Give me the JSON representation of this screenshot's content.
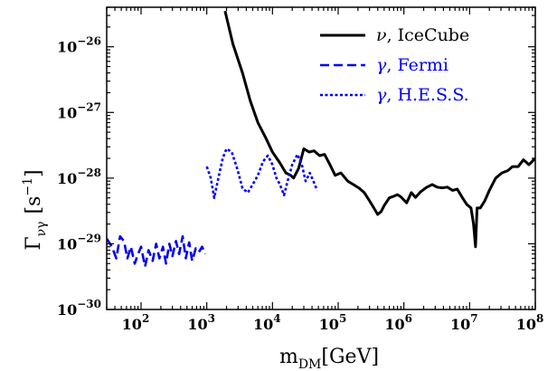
{
  "chart_data": {
    "type": "line",
    "xlabel": "m",
    "xlabel_sub": "DM",
    "xlabel_unit": "[GeV]",
    "ylabel": "Γ",
    "ylabel_sub": "νγ",
    "ylabel_unit": "[s",
    "ylabel_unit_sup": "−1",
    "ylabel_unit_close": "]",
    "x_scale": "log",
    "y_scale": "log",
    "xlim": [
      30,
      100000000
    ],
    "ylim": [
      1e-30,
      4e-26
    ],
    "x_ticks": [
      {
        "value": 100,
        "base": "10",
        "exp": "2"
      },
      {
        "value": 1000,
        "base": "10",
        "exp": "3"
      },
      {
        "value": 10000,
        "base": "10",
        "exp": "4"
      },
      {
        "value": 100000,
        "base": "10",
        "exp": "5"
      },
      {
        "value": 1000000,
        "base": "10",
        "exp": "6"
      },
      {
        "value": 10000000,
        "base": "10",
        "exp": "7"
      },
      {
        "value": 100000000,
        "base": "10",
        "exp": "8"
      }
    ],
    "y_ticks": [
      {
        "value": 1e-30,
        "base": "10",
        "exp": "−30"
      },
      {
        "value": 1e-29,
        "base": "10",
        "exp": "−29"
      },
      {
        "value": 1e-28,
        "base": "10",
        "exp": "−28"
      },
      {
        "value": 1e-27,
        "base": "10",
        "exp": "−27"
      },
      {
        "value": 1e-26,
        "base": "10",
        "exp": "−26"
      }
    ],
    "legend_position": "top-right",
    "series": [
      {
        "name_symbol": "ν",
        "name_rest": ", IceCube",
        "color": "#000000",
        "style": "solid",
        "x": [
          1900,
          2500,
          3500,
          4600,
          6000,
          8000,
          10000,
          13000,
          16000,
          19000,
          21000,
          25000,
          30000,
          36000,
          43000,
          52000,
          62000,
          75000,
          90000,
          110000,
          140000,
          170000,
          210000,
          250000,
          300000,
          350000,
          400000,
          450000,
          500000,
          600000,
          700000,
          800000,
          900000,
          1100000,
          1300000,
          1500000,
          1800000,
          2200000,
          2700000,
          3200000,
          3800000,
          4600000,
          5500000,
          6500000,
          7800000,
          9000000,
          10500000,
          11500000,
          12300000,
          13000000,
          14500000,
          17000000,
          20000000,
          25000000,
          31000000,
          38000000,
          45000000,
          55000000,
          66000000,
          80000000,
          95000000,
          100000000
        ],
        "y": [
          3.5e-26,
          1.1e-26,
          4e-27,
          1.5e-27,
          7e-28,
          4e-28,
          2.5e-28,
          1.7e-28,
          1.2e-28,
          1.1e-28,
          1e-28,
          1.4e-28,
          2.8e-28,
          2.5e-28,
          2.6e-28,
          2.2e-28,
          2.3e-28,
          1.6e-28,
          1.1e-28,
          1.2e-28,
          9e-29,
          8e-29,
          7e-29,
          6e-29,
          4.5e-29,
          3.5e-29,
          2.8e-29,
          3.1e-29,
          3.8e-29,
          5e-29,
          5.3e-29,
          5.6e-29,
          5.2e-29,
          4.2e-29,
          6e-29,
          5.1e-29,
          6.2e-29,
          7.2e-29,
          8e-29,
          7.3e-29,
          7.1e-29,
          7.3e-29,
          6.5e-29,
          6.8e-29,
          5e-29,
          4e-29,
          3.5e-29,
          2e-29,
          9e-30,
          3.5e-29,
          3.5e-29,
          4.5e-29,
          6.5e-29,
          1e-28,
          1.2e-28,
          1.3e-28,
          1.5e-28,
          1.5e-28,
          1.9e-28,
          1.6e-28,
          1.9e-28,
          2e-28
        ]
      },
      {
        "name_symbol": "γ",
        "name_rest": ", Fermi",
        "color": "#0000ee",
        "style": "dashed",
        "x": [
          30,
          36,
          42,
          48,
          55,
          62,
          70,
          80,
          90,
          100,
          115,
          130,
          150,
          170,
          190,
          215,
          240,
          270,
          300,
          340,
          380,
          430,
          480,
          540,
          600,
          680,
          760,
          850,
          950
        ],
        "y": [
          1.2e-29,
          9e-30,
          6e-30,
          1.3e-29,
          1.1e-29,
          6e-30,
          9e-30,
          5e-30,
          7e-30,
          9e-30,
          4.5e-30,
          8e-30,
          5.5e-30,
          1e-29,
          6e-30,
          9e-30,
          5e-30,
          1e-29,
          6.5e-30,
          1.1e-29,
          7e-30,
          1.3e-29,
          6e-30,
          1.05e-29,
          5.5e-30,
          8.5e-30,
          7.5e-30,
          9e-30,
          7e-30
        ]
      },
      {
        "name_symbol": "γ",
        "name_rest": ", H.E.S.S.",
        "color": "#0000ee",
        "style": "dotted",
        "x": [
          1000,
          1150,
          1300,
          1500,
          1750,
          2000,
          2400,
          2900,
          3500,
          4200,
          5000,
          6000,
          7200,
          8500,
          10000,
          11500,
          13000,
          15000,
          17000,
          20000,
          24000,
          28000,
          32000,
          37000,
          42000,
          48000
        ],
        "y": [
          1.5e-28,
          1e-28,
          5e-29,
          1e-28,
          2e-28,
          2.8e-28,
          2.5e-28,
          1.4e-28,
          7e-29,
          6e-29,
          8e-29,
          1.1e-28,
          1.8e-28,
          2.2e-28,
          1.6e-28,
          1e-28,
          8e-29,
          5.5e-29,
          9e-29,
          1.6e-28,
          2.3e-28,
          1.6e-28,
          9e-29,
          1.2e-28,
          9e-29,
          6.5e-29
        ]
      }
    ]
  }
}
